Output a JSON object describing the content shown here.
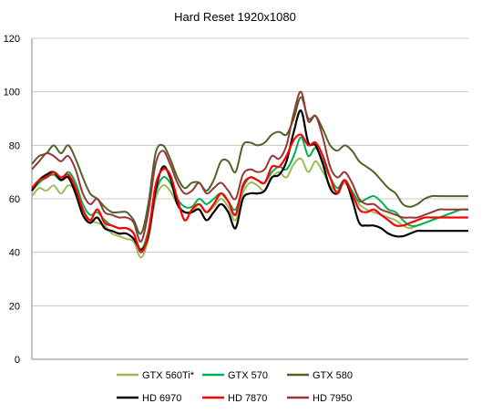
{
  "chart_data": {
    "type": "line",
    "title": "Hard Reset 1920x1080",
    "xlabel": "",
    "ylabel": "",
    "ylim": [
      0,
      120
    ],
    "yticks": [
      0,
      20,
      40,
      60,
      80,
      100,
      120
    ],
    "grid": true,
    "legend_position": "bottom",
    "x": [
      0,
      1,
      2,
      3,
      4,
      5,
      6,
      7,
      8,
      9,
      10,
      11,
      12,
      13,
      14,
      15,
      16,
      17,
      18,
      19,
      20,
      21,
      22,
      23,
      24,
      25,
      26,
      27,
      28,
      29,
      30,
      31,
      32,
      33,
      34,
      35,
      36,
      37,
      38,
      39,
      40,
      41,
      42,
      43,
      44,
      45,
      46,
      47,
      48,
      49,
      50,
      51,
      52,
      53,
      54,
      55,
      56,
      57,
      58,
      59,
      60
    ],
    "series": [
      {
        "name": "GTX 560Ti*",
        "color": "#9bbb59",
        "values": [
          61,
          64,
          63,
          65,
          62,
          65,
          63,
          56,
          52,
          51,
          50,
          47,
          46,
          45,
          44,
          38,
          45,
          60,
          65,
          63,
          58,
          55,
          55,
          58,
          55,
          57,
          60,
          57,
          52,
          62,
          66,
          65,
          63,
          68,
          70,
          68,
          73,
          75,
          70,
          74,
          70,
          65,
          63,
          66,
          62,
          58,
          56,
          55,
          54,
          53,
          52,
          50,
          49,
          50,
          51,
          52,
          53,
          54,
          55,
          56,
          56
        ]
      },
      {
        "name": "GTX 570",
        "color": "#00b050",
        "values": [
          63,
          66,
          68,
          69,
          67,
          70,
          66,
          58,
          54,
          55,
          52,
          50,
          49,
          49,
          47,
          41,
          48,
          62,
          68,
          66,
          60,
          57,
          57,
          60,
          58,
          60,
          62,
          59,
          56,
          64,
          68,
          67,
          66,
          70,
          72,
          71,
          76,
          83,
          76,
          79,
          74,
          68,
          64,
          67,
          63,
          59,
          60,
          61,
          59,
          56,
          55,
          52,
          50,
          50,
          51,
          52,
          53,
          54,
          55,
          56,
          56
        ]
      },
      {
        "name": "GTX 580",
        "color": "#4f6228",
        "values": [
          73,
          76,
          77,
          80,
          77,
          80,
          75,
          68,
          62,
          60,
          57,
          55,
          55,
          55,
          52,
          47,
          58,
          77,
          80,
          75,
          68,
          64,
          66,
          66,
          63,
          67,
          74,
          74,
          70,
          80,
          81,
          80,
          81,
          84,
          85,
          84,
          90,
          98,
          90,
          91,
          86,
          80,
          78,
          80,
          78,
          74,
          72,
          70,
          67,
          64,
          62,
          58,
          57,
          58,
          60,
          61,
          61,
          61,
          61,
          61,
          61
        ]
      },
      {
        "name": "HD 6970",
        "color": "#000000",
        "values": [
          63,
          67,
          69,
          70,
          67,
          68,
          62,
          54,
          51,
          53,
          49,
          48,
          47,
          47,
          45,
          41,
          46,
          63,
          72,
          68,
          58,
          55,
          55,
          56,
          52,
          55,
          58,
          55,
          49,
          60,
          62,
          62,
          63,
          68,
          69,
          74,
          85,
          93,
          81,
          80,
          73,
          64,
          62,
          67,
          60,
          51,
          50,
          50,
          49,
          47,
          46,
          46,
          47,
          48,
          48,
          48,
          48,
          48,
          48,
          48,
          48
        ]
      },
      {
        "name": "HD 7870",
        "color": "#ff0000",
        "values": [
          64,
          67,
          68,
          70,
          68,
          69,
          64,
          56,
          52,
          56,
          51,
          50,
          49,
          49,
          47,
          40,
          47,
          65,
          71,
          69,
          60,
          52,
          56,
          58,
          55,
          58,
          62,
          59,
          54,
          65,
          68,
          67,
          66,
          72,
          72,
          76,
          82,
          84,
          80,
          81,
          76,
          68,
          62,
          67,
          62,
          56,
          55,
          56,
          54,
          52,
          50,
          50,
          51,
          52,
          53,
          53,
          53,
          53,
          53,
          53,
          53
        ]
      },
      {
        "name": "HD 7950",
        "color": "#953735",
        "values": [
          71,
          74,
          77,
          76,
          74,
          76,
          71,
          62,
          58,
          60,
          55,
          54,
          53,
          53,
          51,
          44,
          55,
          73,
          78,
          73,
          66,
          62,
          63,
          66,
          62,
          64,
          66,
          63,
          60,
          69,
          71,
          70,
          71,
          76,
          75,
          80,
          92,
          100,
          89,
          91,
          83,
          72,
          68,
          70,
          66,
          60,
          58,
          58,
          56,
          55,
          54,
          53,
          53,
          53,
          54,
          55,
          56,
          56,
          56,
          56,
          56
        ]
      }
    ]
  }
}
